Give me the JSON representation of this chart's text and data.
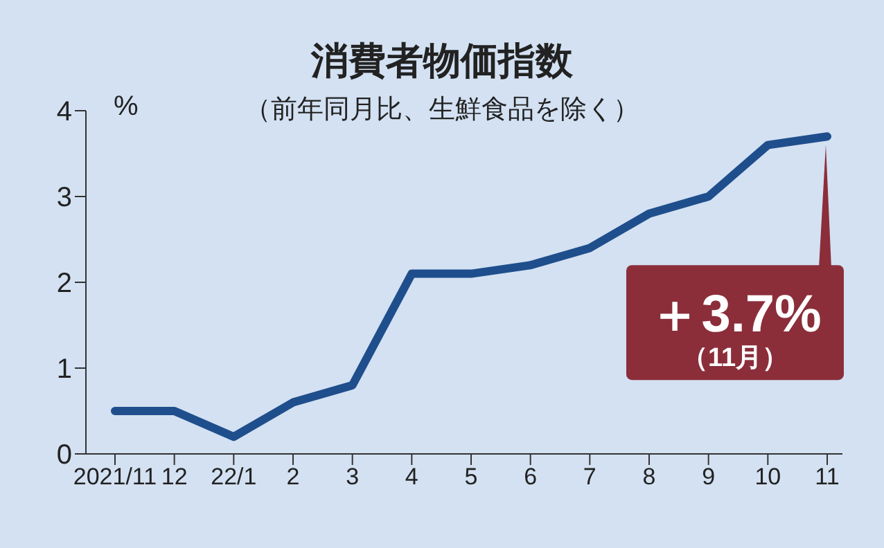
{
  "chart_data": {
    "type": "line",
    "title": "消費者物価指数",
    "subtitle": "（前年同月比、生鮮食品を除く）",
    "ylabel": "%",
    "categories": [
      "2021/11",
      "12",
      "22/1",
      "2",
      "3",
      "4",
      "5",
      "6",
      "7",
      "8",
      "9",
      "10",
      "11"
    ],
    "series": [
      {
        "color": "#1f4e8c",
        "values": [
          0.5,
          0.5,
          0.2,
          0.6,
          0.8,
          2.1,
          2.1,
          2.2,
          2.4,
          2.8,
          3.0,
          3.6,
          3.7
        ]
      }
    ],
    "ylim": [
      0,
      4
    ],
    "yticks": [
      0,
      1,
      2,
      3,
      4
    ],
    "grid": false,
    "legend": false,
    "marker": "none",
    "line_style": "solid",
    "annotations": [
      {
        "text": "＋3.7%",
        "x": "11",
        "y": 3.7
      },
      "（11月）"
    ]
  }
}
